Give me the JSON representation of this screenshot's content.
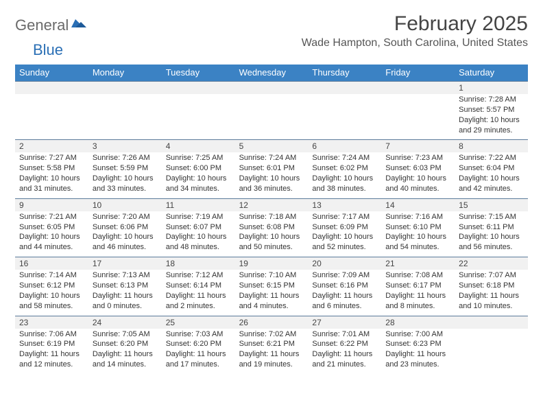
{
  "logo": {
    "text1": "General",
    "text2": "Blue"
  },
  "header": {
    "month_title": "February 2025",
    "location": "Wade Hampton, South Carolina, United States"
  },
  "colors": {
    "header_bar": "#3b82c4",
    "daynum_bg": "#f1f1f1",
    "border": "#5a7a9a",
    "logo_gray": "#6a6a6a",
    "logo_blue": "#2a6fb5"
  },
  "weekdays": [
    "Sunday",
    "Monday",
    "Tuesday",
    "Wednesday",
    "Thursday",
    "Friday",
    "Saturday"
  ],
  "weeks": [
    [
      null,
      null,
      null,
      null,
      null,
      null,
      {
        "n": "1",
        "sunrise": "Sunrise: 7:28 AM",
        "sunset": "Sunset: 5:57 PM",
        "daylight": "Daylight: 10 hours and 29 minutes."
      }
    ],
    [
      {
        "n": "2",
        "sunrise": "Sunrise: 7:27 AM",
        "sunset": "Sunset: 5:58 PM",
        "daylight": "Daylight: 10 hours and 31 minutes."
      },
      {
        "n": "3",
        "sunrise": "Sunrise: 7:26 AM",
        "sunset": "Sunset: 5:59 PM",
        "daylight": "Daylight: 10 hours and 33 minutes."
      },
      {
        "n": "4",
        "sunrise": "Sunrise: 7:25 AM",
        "sunset": "Sunset: 6:00 PM",
        "daylight": "Daylight: 10 hours and 34 minutes."
      },
      {
        "n": "5",
        "sunrise": "Sunrise: 7:24 AM",
        "sunset": "Sunset: 6:01 PM",
        "daylight": "Daylight: 10 hours and 36 minutes."
      },
      {
        "n": "6",
        "sunrise": "Sunrise: 7:24 AM",
        "sunset": "Sunset: 6:02 PM",
        "daylight": "Daylight: 10 hours and 38 minutes."
      },
      {
        "n": "7",
        "sunrise": "Sunrise: 7:23 AM",
        "sunset": "Sunset: 6:03 PM",
        "daylight": "Daylight: 10 hours and 40 minutes."
      },
      {
        "n": "8",
        "sunrise": "Sunrise: 7:22 AM",
        "sunset": "Sunset: 6:04 PM",
        "daylight": "Daylight: 10 hours and 42 minutes."
      }
    ],
    [
      {
        "n": "9",
        "sunrise": "Sunrise: 7:21 AM",
        "sunset": "Sunset: 6:05 PM",
        "daylight": "Daylight: 10 hours and 44 minutes."
      },
      {
        "n": "10",
        "sunrise": "Sunrise: 7:20 AM",
        "sunset": "Sunset: 6:06 PM",
        "daylight": "Daylight: 10 hours and 46 minutes."
      },
      {
        "n": "11",
        "sunrise": "Sunrise: 7:19 AM",
        "sunset": "Sunset: 6:07 PM",
        "daylight": "Daylight: 10 hours and 48 minutes."
      },
      {
        "n": "12",
        "sunrise": "Sunrise: 7:18 AM",
        "sunset": "Sunset: 6:08 PM",
        "daylight": "Daylight: 10 hours and 50 minutes."
      },
      {
        "n": "13",
        "sunrise": "Sunrise: 7:17 AM",
        "sunset": "Sunset: 6:09 PM",
        "daylight": "Daylight: 10 hours and 52 minutes."
      },
      {
        "n": "14",
        "sunrise": "Sunrise: 7:16 AM",
        "sunset": "Sunset: 6:10 PM",
        "daylight": "Daylight: 10 hours and 54 minutes."
      },
      {
        "n": "15",
        "sunrise": "Sunrise: 7:15 AM",
        "sunset": "Sunset: 6:11 PM",
        "daylight": "Daylight: 10 hours and 56 minutes."
      }
    ],
    [
      {
        "n": "16",
        "sunrise": "Sunrise: 7:14 AM",
        "sunset": "Sunset: 6:12 PM",
        "daylight": "Daylight: 10 hours and 58 minutes."
      },
      {
        "n": "17",
        "sunrise": "Sunrise: 7:13 AM",
        "sunset": "Sunset: 6:13 PM",
        "daylight": "Daylight: 11 hours and 0 minutes."
      },
      {
        "n": "18",
        "sunrise": "Sunrise: 7:12 AM",
        "sunset": "Sunset: 6:14 PM",
        "daylight": "Daylight: 11 hours and 2 minutes."
      },
      {
        "n": "19",
        "sunrise": "Sunrise: 7:10 AM",
        "sunset": "Sunset: 6:15 PM",
        "daylight": "Daylight: 11 hours and 4 minutes."
      },
      {
        "n": "20",
        "sunrise": "Sunrise: 7:09 AM",
        "sunset": "Sunset: 6:16 PM",
        "daylight": "Daylight: 11 hours and 6 minutes."
      },
      {
        "n": "21",
        "sunrise": "Sunrise: 7:08 AM",
        "sunset": "Sunset: 6:17 PM",
        "daylight": "Daylight: 11 hours and 8 minutes."
      },
      {
        "n": "22",
        "sunrise": "Sunrise: 7:07 AM",
        "sunset": "Sunset: 6:18 PM",
        "daylight": "Daylight: 11 hours and 10 minutes."
      }
    ],
    [
      {
        "n": "23",
        "sunrise": "Sunrise: 7:06 AM",
        "sunset": "Sunset: 6:19 PM",
        "daylight": "Daylight: 11 hours and 12 minutes."
      },
      {
        "n": "24",
        "sunrise": "Sunrise: 7:05 AM",
        "sunset": "Sunset: 6:20 PM",
        "daylight": "Daylight: 11 hours and 14 minutes."
      },
      {
        "n": "25",
        "sunrise": "Sunrise: 7:03 AM",
        "sunset": "Sunset: 6:20 PM",
        "daylight": "Daylight: 11 hours and 17 minutes."
      },
      {
        "n": "26",
        "sunrise": "Sunrise: 7:02 AM",
        "sunset": "Sunset: 6:21 PM",
        "daylight": "Daylight: 11 hours and 19 minutes."
      },
      {
        "n": "27",
        "sunrise": "Sunrise: 7:01 AM",
        "sunset": "Sunset: 6:22 PM",
        "daylight": "Daylight: 11 hours and 21 minutes."
      },
      {
        "n": "28",
        "sunrise": "Sunrise: 7:00 AM",
        "sunset": "Sunset: 6:23 PM",
        "daylight": "Daylight: 11 hours and 23 minutes."
      },
      null
    ]
  ]
}
